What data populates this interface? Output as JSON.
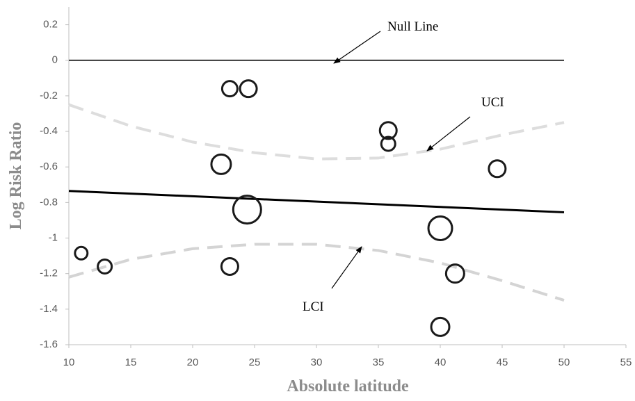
{
  "chart_data": {
    "type": "scatter",
    "x_label": "Absolute latitude",
    "y_label": "Log Risk Ratio",
    "xlim": [
      10,
      55
    ],
    "xticks": [
      10,
      15,
      20,
      25,
      30,
      35,
      40,
      45,
      50,
      55
    ],
    "ylim": [
      -1.6,
      0.3
    ],
    "yticks": [
      0.2,
      0,
      -0.2,
      -0.4,
      -0.6,
      -0.8,
      -1,
      -1.2,
      -1.4,
      -1.6
    ],
    "points": {
      "color": "#1a1a1a",
      "x": [
        11,
        12.9,
        22.3,
        23,
        23,
        24.5,
        24.4,
        35.8,
        35.8,
        40,
        41.2,
        40,
        44.6
      ],
      "values": [
        -1.085,
        -1.16,
        -0.585,
        -0.16,
        -1.16,
        -0.16,
        -0.84,
        -0.395,
        -0.47,
        -0.945,
        -1.2,
        -1.5,
        -0.61
      ],
      "sizes": [
        9,
        10,
        14,
        11,
        12,
        12,
        20,
        12,
        10,
        17,
        13,
        13,
        12
      ]
    },
    "lines": [
      {
        "name": "Null Line",
        "color": "#000000",
        "dashed": false,
        "x": [
          10,
          50
        ],
        "values": [
          0,
          0
        ]
      },
      {
        "color": "#000000",
        "dashed": false,
        "x": [
          10,
          50
        ],
        "values": [
          -0.735,
          -0.855
        ]
      },
      {
        "name": "UCI",
        "color": "#dddddd",
        "dashed": true,
        "x": [
          10,
          15,
          20,
          25,
          30,
          35,
          40,
          45,
          50
        ],
        "values": [
          -0.25,
          -0.37,
          -0.46,
          -0.52,
          -0.555,
          -0.55,
          -0.5,
          -0.42,
          -0.35
        ]
      },
      {
        "name": "LCI",
        "color": "#d4d4d4",
        "dashed": true,
        "x": [
          10,
          15,
          20,
          25,
          30,
          35,
          40,
          45,
          50
        ],
        "values": [
          -1.22,
          -1.12,
          -1.06,
          -1.035,
          -1.035,
          -1.07,
          -1.14,
          -1.24,
          -1.35
        ]
      }
    ]
  }
}
